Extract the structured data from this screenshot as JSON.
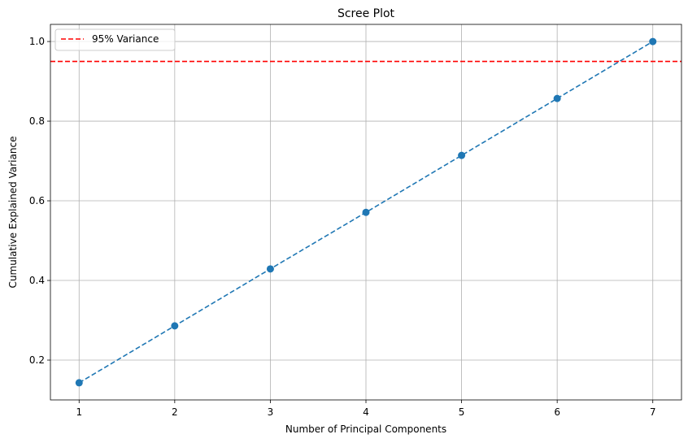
{
  "chart_data": {
    "type": "line",
    "title": "Scree Plot",
    "xlabel": "Number of Principal Components",
    "ylabel": "Cumulative Explained Variance",
    "x": [
      1,
      2,
      3,
      4,
      5,
      6,
      7
    ],
    "x_ticks": [
      "1",
      "2",
      "3",
      "4",
      "5",
      "6",
      "7"
    ],
    "y_ticks": [
      "0.2",
      "0.4",
      "0.6",
      "0.8",
      "1.0"
    ],
    "xlim": [
      0.7,
      7.3
    ],
    "ylim": [
      0.1,
      1.043
    ],
    "grid": true,
    "series": [
      {
        "values": [
          0.143,
          0.286,
          0.429,
          0.571,
          0.714,
          0.857,
          1.0
        ],
        "color": "#1f77b4",
        "line_style": "dashed",
        "marker": "circle"
      }
    ],
    "reference_line": {
      "name": "95% Variance",
      "y": 0.95,
      "color": "#ff0000",
      "line_style": "dashed"
    },
    "legend_position": "top-left"
  }
}
